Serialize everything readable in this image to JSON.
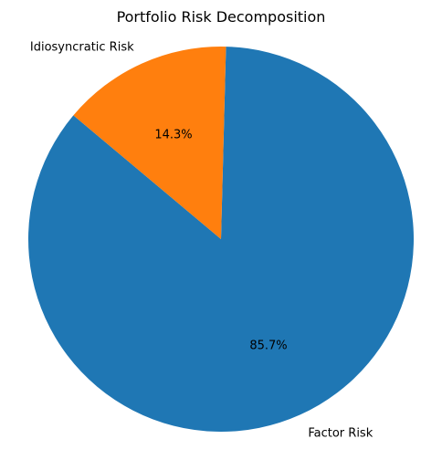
{
  "chart_data": {
    "type": "pie",
    "title": "Portfolio Risk Decomposition",
    "slices": [
      {
        "label": "Factor Risk",
        "value": 85.7,
        "percent_label": "85.7%",
        "color": "#1f77b4"
      },
      {
        "label": "Idiosyncratic Risk",
        "value": 14.3,
        "percent_label": "14.3%",
        "color": "#ff7f0e"
      }
    ],
    "start_angle_deg": 140,
    "direction": "counterclockwise",
    "legend": "none"
  }
}
